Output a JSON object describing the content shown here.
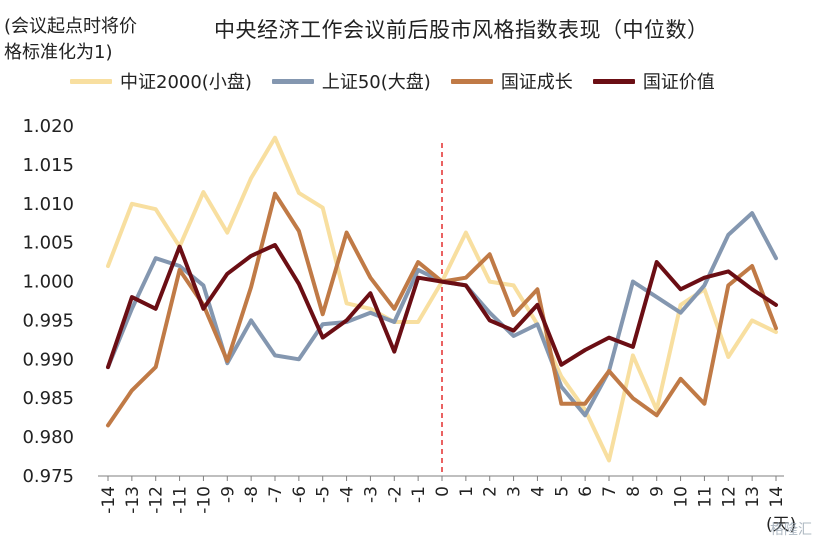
{
  "header": {
    "y_note": "(会议起点时将价格标准化为1)",
    "y_note_line1": "(会议起点时将价",
    "y_note_line2": "格标准化为1)",
    "title": "中央经济工作会议前后股市风格指数表现（中位数）"
  },
  "watermark": "格隆汇",
  "chart_data": {
    "type": "line",
    "title": "中央经济工作会议前后股市风格指数表现（中位数）",
    "ylabel": "(会议起点时将价格标准化为1)",
    "xlabel": "(天)",
    "x": [
      -14,
      -13,
      -12,
      -11,
      -10,
      -9,
      -8,
      -7,
      -6,
      -5,
      -4,
      -3,
      -2,
      -1,
      0,
      1,
      2,
      3,
      4,
      5,
      6,
      7,
      8,
      9,
      10,
      11,
      12,
      13,
      14
    ],
    "ylim": [
      0.975,
      1.02
    ],
    "yticks": [
      "1.020",
      "1.015",
      "1.010",
      "1.005",
      "1.000",
      "0.995",
      "0.990",
      "0.985",
      "0.980",
      "0.975"
    ],
    "reference_line_x": 0,
    "legend_position": "top",
    "grid": false,
    "series": [
      {
        "name": "中证2000(小盘)",
        "color": "#f8dfa0",
        "values": [
          1.002,
          1.01,
          1.0093,
          1.0045,
          1.0115,
          1.0063,
          1.0133,
          1.0185,
          1.0114,
          1.0095,
          0.9972,
          0.9965,
          0.9948,
          0.9948,
          1.0,
          1.0063,
          1.0,
          0.9995,
          0.9945,
          0.9878,
          0.9835,
          0.977,
          0.9905,
          0.9835,
          0.997,
          0.999,
          0.9903,
          0.995,
          0.9935
        ]
      },
      {
        "name": "上证50(大盘)",
        "color": "#8497b0",
        "values": [
          0.989,
          0.9965,
          1.003,
          1.002,
          0.9995,
          0.9895,
          0.995,
          0.9905,
          0.99,
          0.9945,
          0.9948,
          0.996,
          0.9948,
          1.0015,
          1.0,
          0.9995,
          0.996,
          0.993,
          0.9945,
          0.9865,
          0.9828,
          0.9885,
          1.0,
          0.998,
          0.996,
          0.9995,
          1.006,
          1.0088,
          1.003
        ]
      },
      {
        "name": "国证成长",
        "color": "#c07a46",
        "values": [
          0.9815,
          0.986,
          0.989,
          1.0015,
          0.997,
          0.9898,
          0.9993,
          1.0113,
          1.0065,
          0.9958,
          1.0063,
          1.0005,
          0.9965,
          1.0025,
          1.0,
          1.0005,
          1.0035,
          0.9957,
          0.999,
          0.9843,
          0.9843,
          0.9885,
          0.985,
          0.9828,
          0.9875,
          0.9843,
          0.9995,
          1.002,
          0.994
        ]
      },
      {
        "name": "国证价值",
        "color": "#6b0e14",
        "values": [
          0.989,
          0.998,
          0.9965,
          1.0045,
          0.9965,
          1.001,
          1.0033,
          1.0047,
          0.9997,
          0.9928,
          0.995,
          0.9985,
          0.991,
          1.0005,
          1.0,
          0.9995,
          0.995,
          0.9937,
          0.997,
          0.9893,
          0.9912,
          0.9928,
          0.9916,
          1.0025,
          0.999,
          1.0005,
          1.0013,
          0.999,
          0.997
        ]
      }
    ]
  }
}
